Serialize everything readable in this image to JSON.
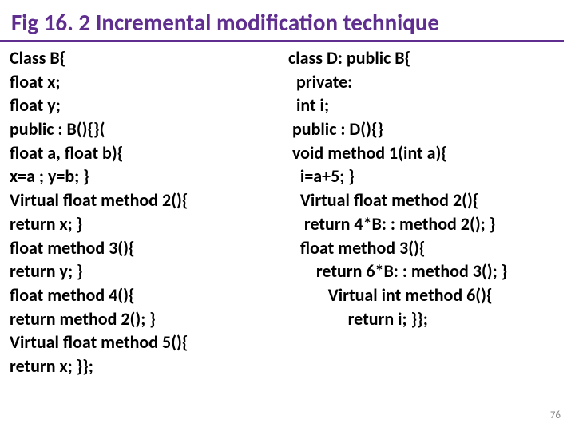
{
  "title": "Fig 16. 2 Incremental modification technique",
  "title_color": "#5f2e8f",
  "title_fontsize": 29,
  "body_color": "#000000",
  "body_fontsize": 22,
  "background_color": "#ffffff",
  "page_number": "76",
  "left_lines": [
    "Class B{",
    "float x;",
    "float y;",
    "public : B(){}(",
    "float a, float b){",
    "x=a ; y=b; }",
    "Virtual float method 2(){",
    "return x; }",
    "float method 3(){",
    "return y; }",
    "float method 4(){",
    "return method 2(); }",
    "Virtual float method 5(){",
    "return x; }};"
  ],
  "right_lines": [
    "class D: public B{",
    "  private:",
    "  int i;",
    " public : D(){}",
    " void method 1(int a){",
    "   i=a+5; }",
    "   Virtual float method 2(){",
    "    return 4*B: : method 2(); }",
    "   float method 3(){",
    "       return 6*B: : method 3(); }",
    "          Virtual int method 6(){",
    "               return i; }};"
  ]
}
